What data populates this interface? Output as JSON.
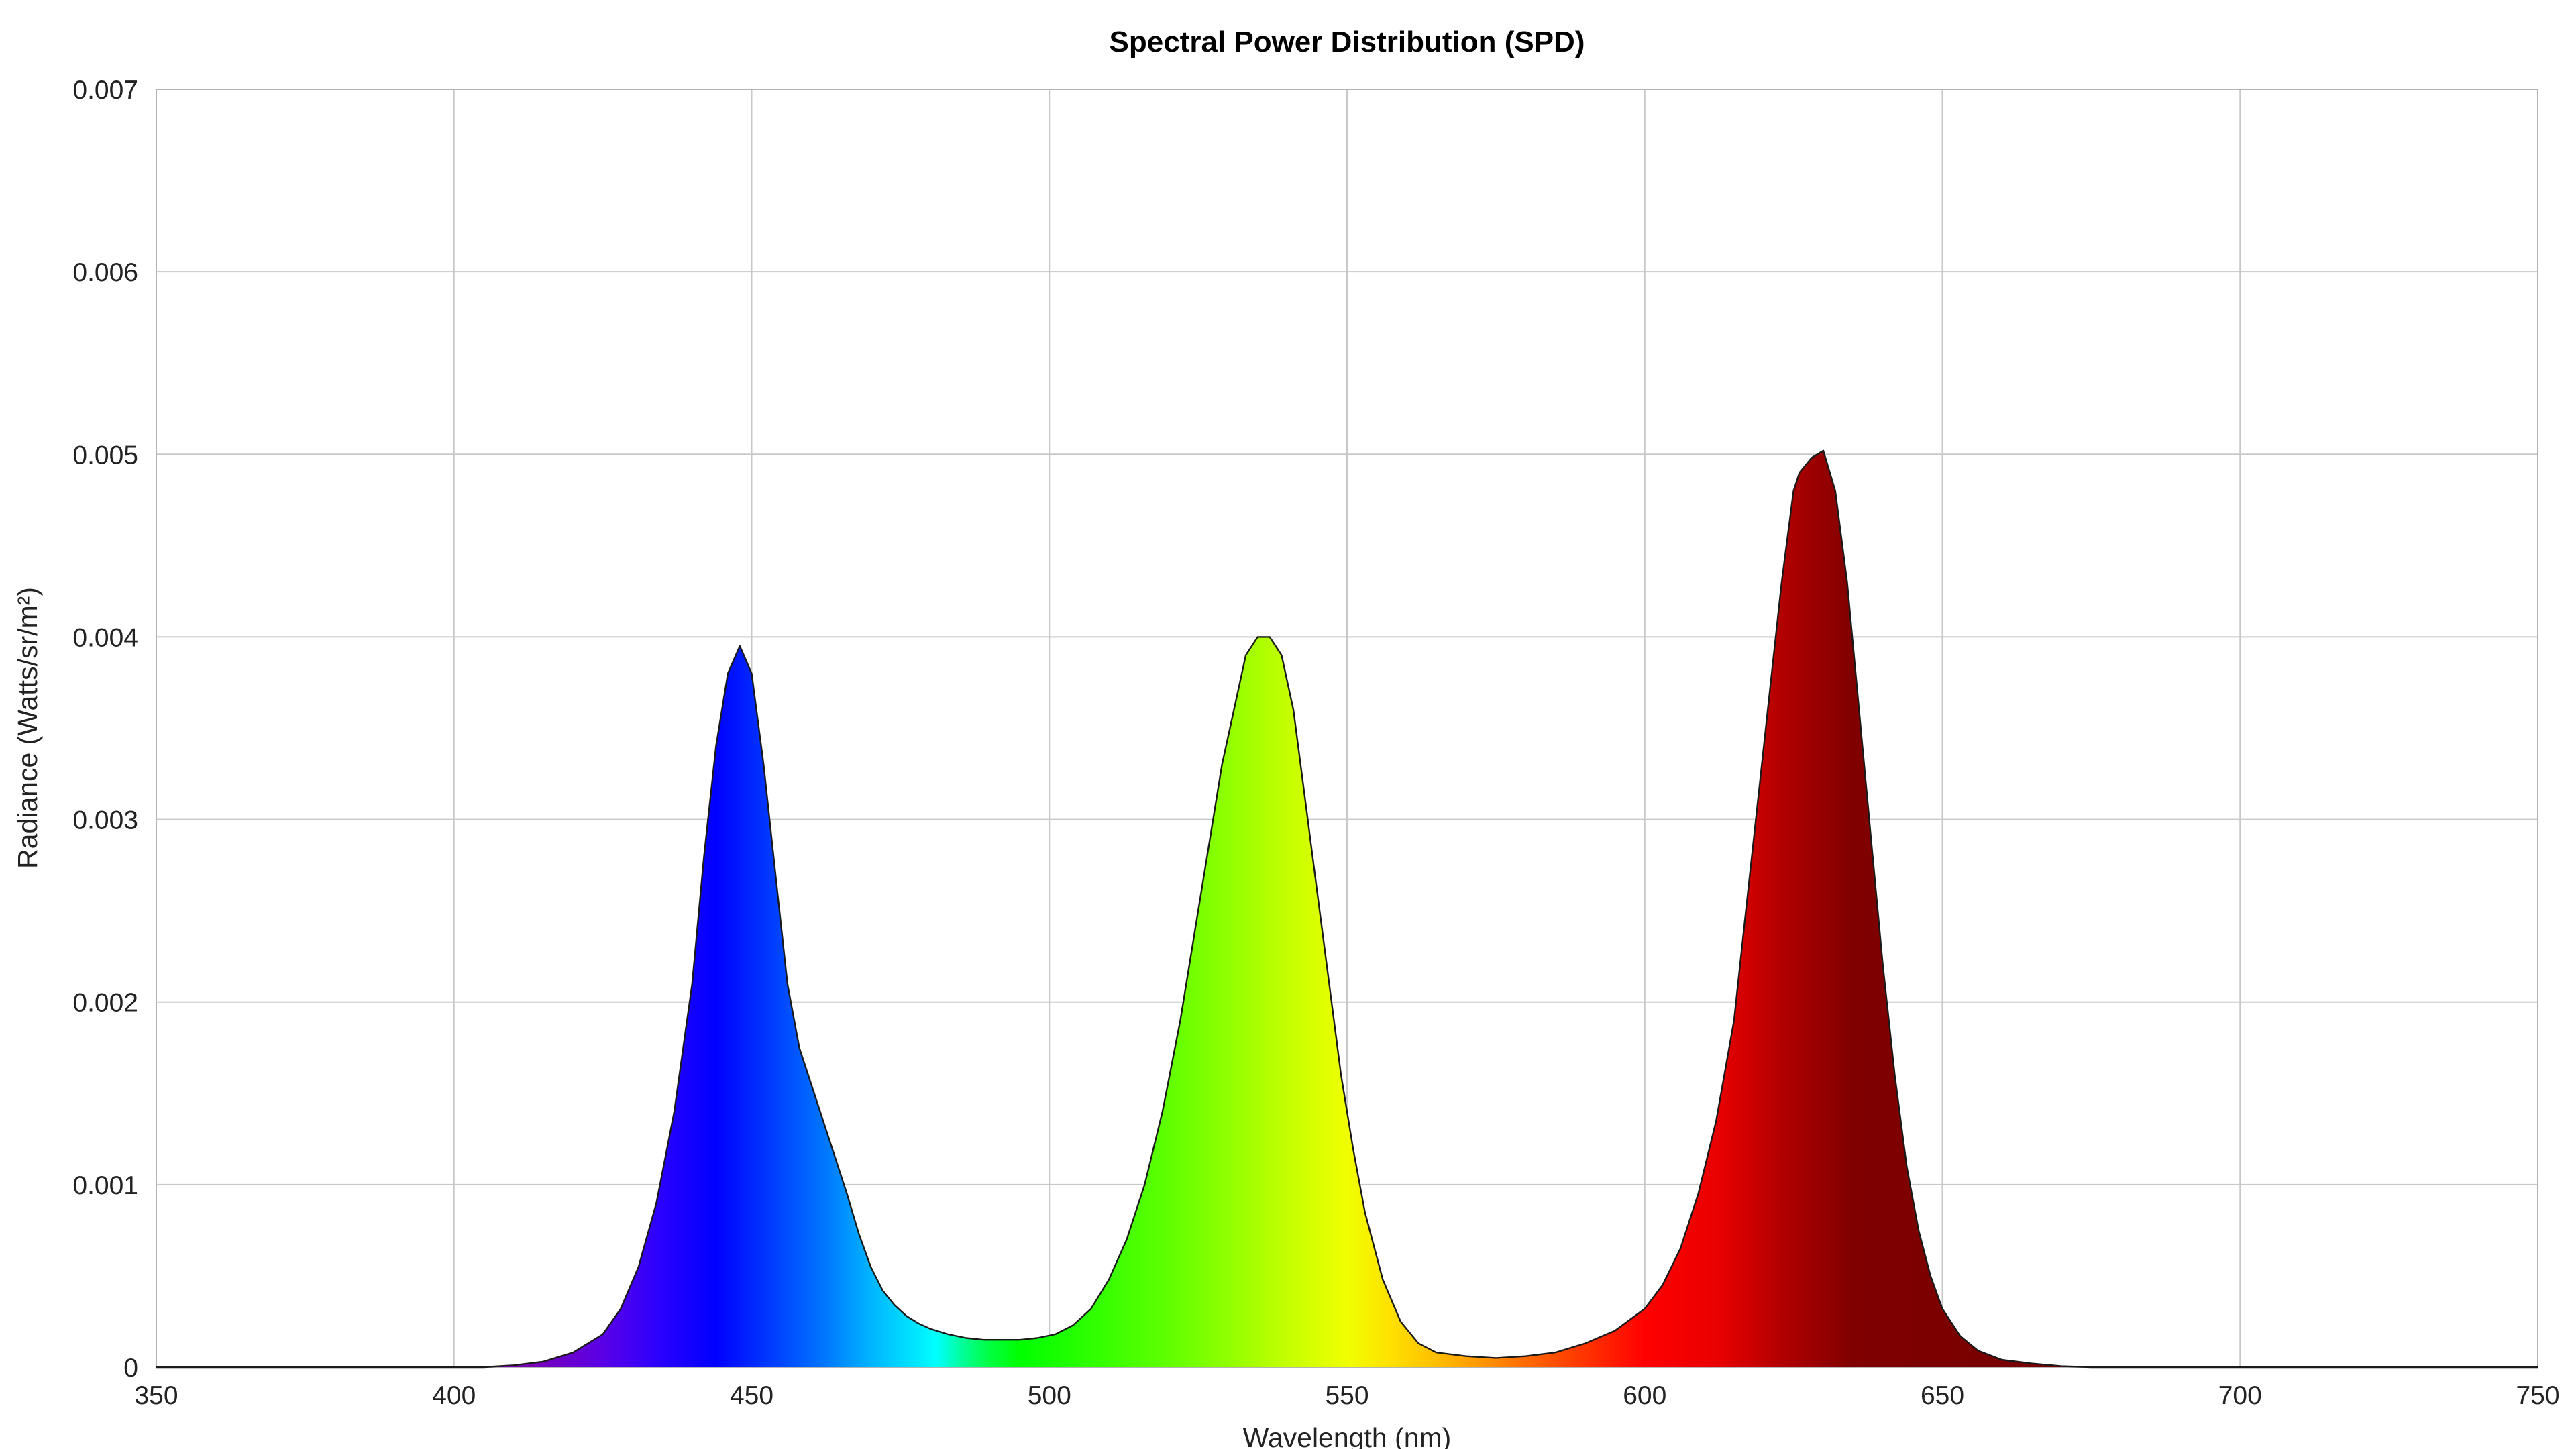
{
  "chart_data": {
    "type": "area",
    "title": "Spectral Power Distribution (SPD)",
    "xlabel": "Wavelength (nm)",
    "ylabel": "Radiance (Watts/sr/m²)",
    "xlim": [
      350,
      750
    ],
    "ylim": [
      0,
      0.007
    ],
    "x_ticks": [
      "350",
      "400",
      "450",
      "500",
      "550",
      "600",
      "650",
      "700",
      "750"
    ],
    "y_ticks": [
      "0",
      "0.001",
      "0.002",
      "0.003",
      "0.004",
      "0.005",
      "0.006",
      "0.007"
    ],
    "grid": true,
    "legend": "none",
    "fill": "visible-spectrum color gradient",
    "series": [
      {
        "x": [
          350,
          405,
          410,
          415,
          420,
          425,
          428,
          431,
          434,
          437,
          440,
          442,
          444,
          446,
          448,
          450,
          452,
          454,
          456,
          458,
          460,
          462,
          464,
          466,
          468,
          470,
          472,
          474,
          476,
          478,
          480,
          483,
          486,
          489,
          492,
          495,
          498,
          501,
          504,
          507,
          510,
          513,
          516,
          519,
          522,
          525,
          527,
          529,
          531,
          533,
          535,
          537,
          539,
          541,
          543,
          545,
          547,
          549,
          551,
          553,
          556,
          559,
          562,
          565,
          570,
          575,
          580,
          585,
          590,
          595,
          600,
          603,
          606,
          609,
          612,
          615,
          617,
          619,
          621,
          623,
          625,
          626,
          628,
          630,
          632,
          634,
          636,
          638,
          640,
          642,
          644,
          646,
          648,
          650,
          653,
          656,
          660,
          665,
          670,
          675,
          680,
          750
        ],
        "y": [
          0,
          0,
          1e-05,
          3e-05,
          8e-05,
          0.00018,
          0.00032,
          0.00055,
          0.0009,
          0.0014,
          0.0021,
          0.0028,
          0.0034,
          0.0038,
          0.00395,
          0.0038,
          0.0033,
          0.0027,
          0.0021,
          0.00175,
          0.00155,
          0.00135,
          0.00115,
          0.00095,
          0.00073,
          0.00055,
          0.00042,
          0.00034,
          0.00028,
          0.00024,
          0.00021,
          0.00018,
          0.00016,
          0.00015,
          0.00015,
          0.00015,
          0.00016,
          0.00018,
          0.00023,
          0.00032,
          0.00048,
          0.0007,
          0.001,
          0.0014,
          0.0019,
          0.0025,
          0.0029,
          0.0033,
          0.0036,
          0.0039,
          0.004,
          0.004,
          0.0039,
          0.0036,
          0.0031,
          0.0026,
          0.0021,
          0.0016,
          0.0012,
          0.00085,
          0.00048,
          0.00025,
          0.00013,
          8e-05,
          6e-05,
          5e-05,
          6e-05,
          8e-05,
          0.00013,
          0.0002,
          0.00032,
          0.00045,
          0.00065,
          0.00095,
          0.00135,
          0.0019,
          0.0025,
          0.0031,
          0.0037,
          0.0043,
          0.0048,
          0.0049,
          0.00498,
          0.00502,
          0.0048,
          0.0043,
          0.0036,
          0.0029,
          0.0022,
          0.0016,
          0.0011,
          0.00075,
          0.0005,
          0.00032,
          0.00017,
          9e-05,
          4e-05,
          2e-05,
          5e-06,
          0,
          0,
          0
        ]
      }
    ]
  }
}
